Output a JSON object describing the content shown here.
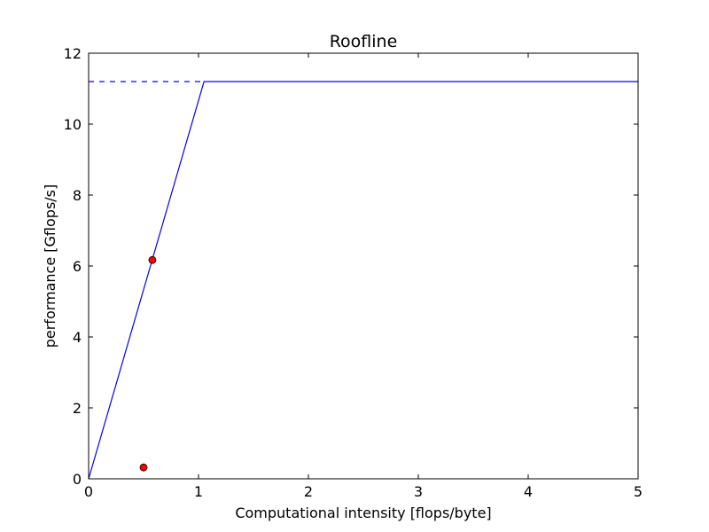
{
  "chart_data": {
    "type": "line",
    "title": "Roofline",
    "xlabel": "Computational intensity [flops/byte]",
    "ylabel": "performance [Gflops/s]",
    "xlim": [
      0,
      5
    ],
    "ylim": [
      0,
      12
    ],
    "x_ticks": [
      "0",
      "1",
      "2",
      "3",
      "4",
      "5"
    ],
    "y_ticks": [
      "0",
      "2",
      "4",
      "6",
      "8",
      "10",
      "12"
    ],
    "grid": false,
    "roofline": {
      "color": "#0000ff",
      "peak_performance": 11.2,
      "ridge_intensity": 1.05,
      "points": [
        [
          0,
          0
        ],
        [
          1.05,
          11.2
        ],
        [
          5,
          11.2
        ]
      ],
      "dashed_peak_from": 0
    },
    "series": [
      {
        "marker": "circle",
        "color": "#ff0000",
        "points": [
          [
            0.58,
            6.17
          ],
          [
            0.5,
            0.32
          ]
        ]
      }
    ]
  }
}
